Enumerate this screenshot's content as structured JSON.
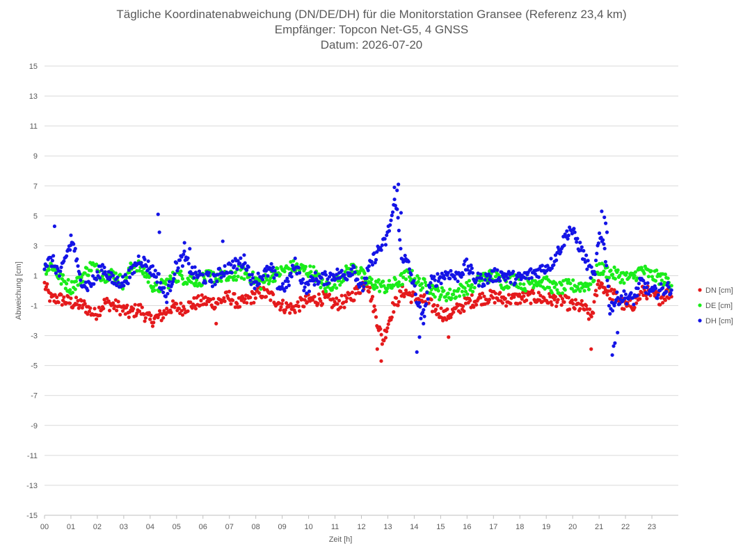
{
  "chart_data": {
    "type": "scatter",
    "title": "Tägliche Koordinatenabweichung (DN/DE/DH) für die Monitorstation Gransee (Referenz 23,4 km)",
    "subtitle": "Empfänger: Topcon Net-G5, 4 GNSS",
    "date_line": "Datum: 2026-07-20",
    "xlabel": "Zeit [h]",
    "ylabel": "Abweichung [cm]",
    "xlim": [
      0,
      24
    ],
    "ylim": [
      -15,
      15
    ],
    "x_ticks": [
      "00",
      "01",
      "02",
      "03",
      "04",
      "05",
      "06",
      "07",
      "08",
      "09",
      "10",
      "11",
      "12",
      "13",
      "14",
      "15",
      "16",
      "17",
      "18",
      "19",
      "20",
      "21",
      "22",
      "23"
    ],
    "y_ticks": [
      "15",
      "13",
      "11",
      "9",
      "7",
      "5",
      "3",
      "1",
      "-1",
      "-3",
      "-5",
      "-7",
      "-9",
      "-11",
      "-13",
      "-15"
    ],
    "grid": "horizontal",
    "legend_position": "right",
    "sampling_interval_h": 0.0333,
    "series": [
      {
        "name": "DN [cm]",
        "color": "#e41a1c",
        "keypoints": [
          [
            0.0,
            0.4
          ],
          [
            0.25,
            -0.6
          ],
          [
            0.5,
            -0.5
          ],
          [
            1.0,
            -0.8
          ],
          [
            1.5,
            -1.0
          ],
          [
            1.9,
            -1.6
          ],
          [
            2.3,
            -0.8
          ],
          [
            2.8,
            -1.1
          ],
          [
            3.2,
            -1.5
          ],
          [
            3.6,
            -1.2
          ],
          [
            4.0,
            -2.0
          ],
          [
            4.4,
            -1.7
          ],
          [
            4.8,
            -1.1
          ],
          [
            5.2,
            -1.2
          ],
          [
            5.6,
            -0.9
          ],
          [
            6.0,
            -0.7
          ],
          [
            6.5,
            -0.8
          ],
          [
            7.0,
            -0.4
          ],
          [
            7.4,
            -0.9
          ],
          [
            7.8,
            -0.5
          ],
          [
            8.2,
            -0.1
          ],
          [
            8.6,
            -0.4
          ],
          [
            9.0,
            -1.0
          ],
          [
            9.4,
            -1.2
          ],
          [
            9.8,
            -0.8
          ],
          [
            10.2,
            -0.6
          ],
          [
            10.6,
            -0.5
          ],
          [
            11.0,
            -0.9
          ],
          [
            11.4,
            -0.7
          ],
          [
            11.8,
            -0.1
          ],
          [
            12.2,
            0.7
          ],
          [
            12.5,
            -1.3
          ],
          [
            12.8,
            -3.4
          ],
          [
            13.2,
            -1.1
          ],
          [
            13.6,
            0.0
          ],
          [
            14.0,
            -0.5
          ],
          [
            14.4,
            -0.7
          ],
          [
            14.8,
            -1.2
          ],
          [
            15.2,
            -1.7
          ],
          [
            15.6,
            -1.3
          ],
          [
            16.0,
            -0.8
          ],
          [
            16.5,
            -0.5
          ],
          [
            17.0,
            -0.4
          ],
          [
            17.5,
            -0.6
          ],
          [
            18.0,
            -0.5
          ],
          [
            18.5,
            -0.4
          ],
          [
            19.0,
            -0.6
          ],
          [
            19.5,
            -0.6
          ],
          [
            20.0,
            -1.0
          ],
          [
            20.4,
            -1.1
          ],
          [
            20.7,
            -1.8
          ],
          [
            21.0,
            0.6
          ],
          [
            21.3,
            0.0
          ],
          [
            21.7,
            -0.5
          ],
          [
            22.0,
            -1.1
          ],
          [
            22.3,
            -0.9
          ],
          [
            22.7,
            0.0
          ],
          [
            23.0,
            -0.3
          ],
          [
            23.3,
            -0.5
          ],
          [
            23.7,
            -0.1
          ]
        ],
        "outliers": [
          [
            6.5,
            -2.2
          ],
          [
            12.6,
            -3.9
          ],
          [
            12.75,
            -4.7
          ],
          [
            15.3,
            -3.1
          ],
          [
            20.7,
            -3.9
          ]
        ]
      },
      {
        "name": "DE [cm]",
        "color": "#1aec1a",
        "keypoints": [
          [
            0.0,
            1.5
          ],
          [
            0.3,
            1.7
          ],
          [
            0.6,
            0.8
          ],
          [
            1.0,
            0.2
          ],
          [
            1.4,
            0.9
          ],
          [
            1.8,
            1.7
          ],
          [
            2.2,
            1.0
          ],
          [
            2.6,
            1.1
          ],
          [
            3.0,
            0.5
          ],
          [
            3.4,
            1.9
          ],
          [
            3.8,
            1.2
          ],
          [
            4.2,
            0.1
          ],
          [
            4.6,
            0.5
          ],
          [
            5.0,
            1.0
          ],
          [
            5.4,
            0.8
          ],
          [
            5.8,
            0.7
          ],
          [
            6.2,
            0.9
          ],
          [
            6.6,
            1.0
          ],
          [
            7.0,
            0.8
          ],
          [
            7.4,
            1.3
          ],
          [
            7.8,
            0.9
          ],
          [
            8.2,
            0.5
          ],
          [
            8.6,
            1.0
          ],
          [
            9.0,
            1.3
          ],
          [
            9.4,
            1.6
          ],
          [
            9.8,
            1.4
          ],
          [
            10.2,
            1.2
          ],
          [
            10.6,
            0.2
          ],
          [
            11.0,
            0.5
          ],
          [
            11.4,
            1.2
          ],
          [
            11.8,
            1.6
          ],
          [
            12.2,
            0.6
          ],
          [
            12.6,
            0.4
          ],
          [
            13.0,
            0.2
          ],
          [
            13.4,
            0.6
          ],
          [
            13.8,
            1.1
          ],
          [
            14.2,
            0.5
          ],
          [
            14.6,
            0.2
          ],
          [
            15.0,
            -0.2
          ],
          [
            15.4,
            -0.3
          ],
          [
            15.8,
            0.1
          ],
          [
            16.2,
            0.3
          ],
          [
            16.6,
            0.9
          ],
          [
            17.0,
            1.0
          ],
          [
            17.4,
            0.5
          ],
          [
            17.8,
            0.8
          ],
          [
            18.2,
            0.4
          ],
          [
            18.6,
            0.7
          ],
          [
            19.0,
            0.5
          ],
          [
            19.4,
            0.1
          ],
          [
            19.8,
            0.3
          ],
          [
            20.2,
            0.3
          ],
          [
            20.6,
            0.4
          ],
          [
            21.0,
            1.5
          ],
          [
            21.4,
            1.2
          ],
          [
            21.8,
            1.0
          ],
          [
            22.2,
            0.8
          ],
          [
            22.6,
            1.4
          ],
          [
            23.0,
            1.0
          ],
          [
            23.4,
            0.8
          ],
          [
            23.7,
            0.5
          ]
        ],
        "outliers": []
      },
      {
        "name": "DH [cm]",
        "color": "#1414e6",
        "keypoints": [
          [
            0.0,
            1.8
          ],
          [
            0.3,
            2.0
          ],
          [
            0.6,
            1.0
          ],
          [
            0.9,
            2.8
          ],
          [
            1.1,
            3.2
          ],
          [
            1.3,
            1.0
          ],
          [
            1.6,
            0.3
          ],
          [
            1.9,
            0.7
          ],
          [
            2.2,
            1.6
          ],
          [
            2.6,
            0.6
          ],
          [
            3.0,
            0.6
          ],
          [
            3.3,
            1.2
          ],
          [
            3.6,
            2.2
          ],
          [
            4.0,
            1.5
          ],
          [
            4.3,
            0.9
          ],
          [
            4.6,
            -0.5
          ],
          [
            5.0,
            1.7
          ],
          [
            5.3,
            2.2
          ],
          [
            5.6,
            1.2
          ],
          [
            6.0,
            0.9
          ],
          [
            6.4,
            0.7
          ],
          [
            6.8,
            1.4
          ],
          [
            7.2,
            1.7
          ],
          [
            7.6,
            2.0
          ],
          [
            7.9,
            0.5
          ],
          [
            8.2,
            1.0
          ],
          [
            8.6,
            1.4
          ],
          [
            8.9,
            0.2
          ],
          [
            9.2,
            0.4
          ],
          [
            9.5,
            1.8
          ],
          [
            9.9,
            0.1
          ],
          [
            10.2,
            0.8
          ],
          [
            10.6,
            0.8
          ],
          [
            11.0,
            1.1
          ],
          [
            11.4,
            1.0
          ],
          [
            11.7,
            1.6
          ],
          [
            12.0,
            0.0
          ],
          [
            12.3,
            1.5
          ],
          [
            12.6,
            2.6
          ],
          [
            12.9,
            3.2
          ],
          [
            13.1,
            4.5
          ],
          [
            13.3,
            6.2
          ],
          [
            13.5,
            2.5
          ],
          [
            13.8,
            1.6
          ],
          [
            14.0,
            0.2
          ],
          [
            14.3,
            -2.0
          ],
          [
            14.6,
            0.5
          ],
          [
            15.0,
            0.9
          ],
          [
            15.3,
            1.2
          ],
          [
            15.6,
            0.9
          ],
          [
            16.0,
            1.7
          ],
          [
            16.3,
            0.8
          ],
          [
            16.6,
            0.7
          ],
          [
            17.0,
            1.0
          ],
          [
            17.3,
            1.1
          ],
          [
            17.6,
            0.9
          ],
          [
            18.0,
            0.8
          ],
          [
            18.4,
            1.1
          ],
          [
            18.8,
            1.4
          ],
          [
            19.2,
            1.8
          ],
          [
            19.6,
            3.1
          ],
          [
            19.9,
            4.2
          ],
          [
            20.2,
            3.2
          ],
          [
            20.5,
            2.0
          ],
          [
            20.8,
            0.8
          ],
          [
            21.0,
            3.4
          ],
          [
            21.2,
            3.3
          ],
          [
            21.4,
            -1.2
          ],
          [
            21.7,
            -0.5
          ],
          [
            22.0,
            -0.4
          ],
          [
            22.3,
            -0.6
          ],
          [
            22.6,
            0.6
          ],
          [
            23.0,
            -0.2
          ],
          [
            23.3,
            0.0
          ],
          [
            23.7,
            0.2
          ]
        ],
        "outliers": [
          [
            0.38,
            4.3
          ],
          [
            1.0,
            3.7
          ],
          [
            4.3,
            5.1
          ],
          [
            4.35,
            3.9
          ],
          [
            5.3,
            3.2
          ],
          [
            5.5,
            2.8
          ],
          [
            6.75,
            3.3
          ],
          [
            13.25,
            6.9
          ],
          [
            13.35,
            6.7
          ],
          [
            13.4,
            7.1
          ],
          [
            13.5,
            5.2
          ],
          [
            14.1,
            -4.1
          ],
          [
            14.2,
            -3.1
          ],
          [
            14.35,
            -2.2
          ],
          [
            21.1,
            5.3
          ],
          [
            21.2,
            4.9
          ],
          [
            21.25,
            4.5
          ],
          [
            21.3,
            3.9
          ],
          [
            21.5,
            -4.3
          ],
          [
            21.55,
            -3.7
          ],
          [
            21.6,
            -3.5
          ],
          [
            21.7,
            -2.8
          ]
        ]
      }
    ]
  }
}
